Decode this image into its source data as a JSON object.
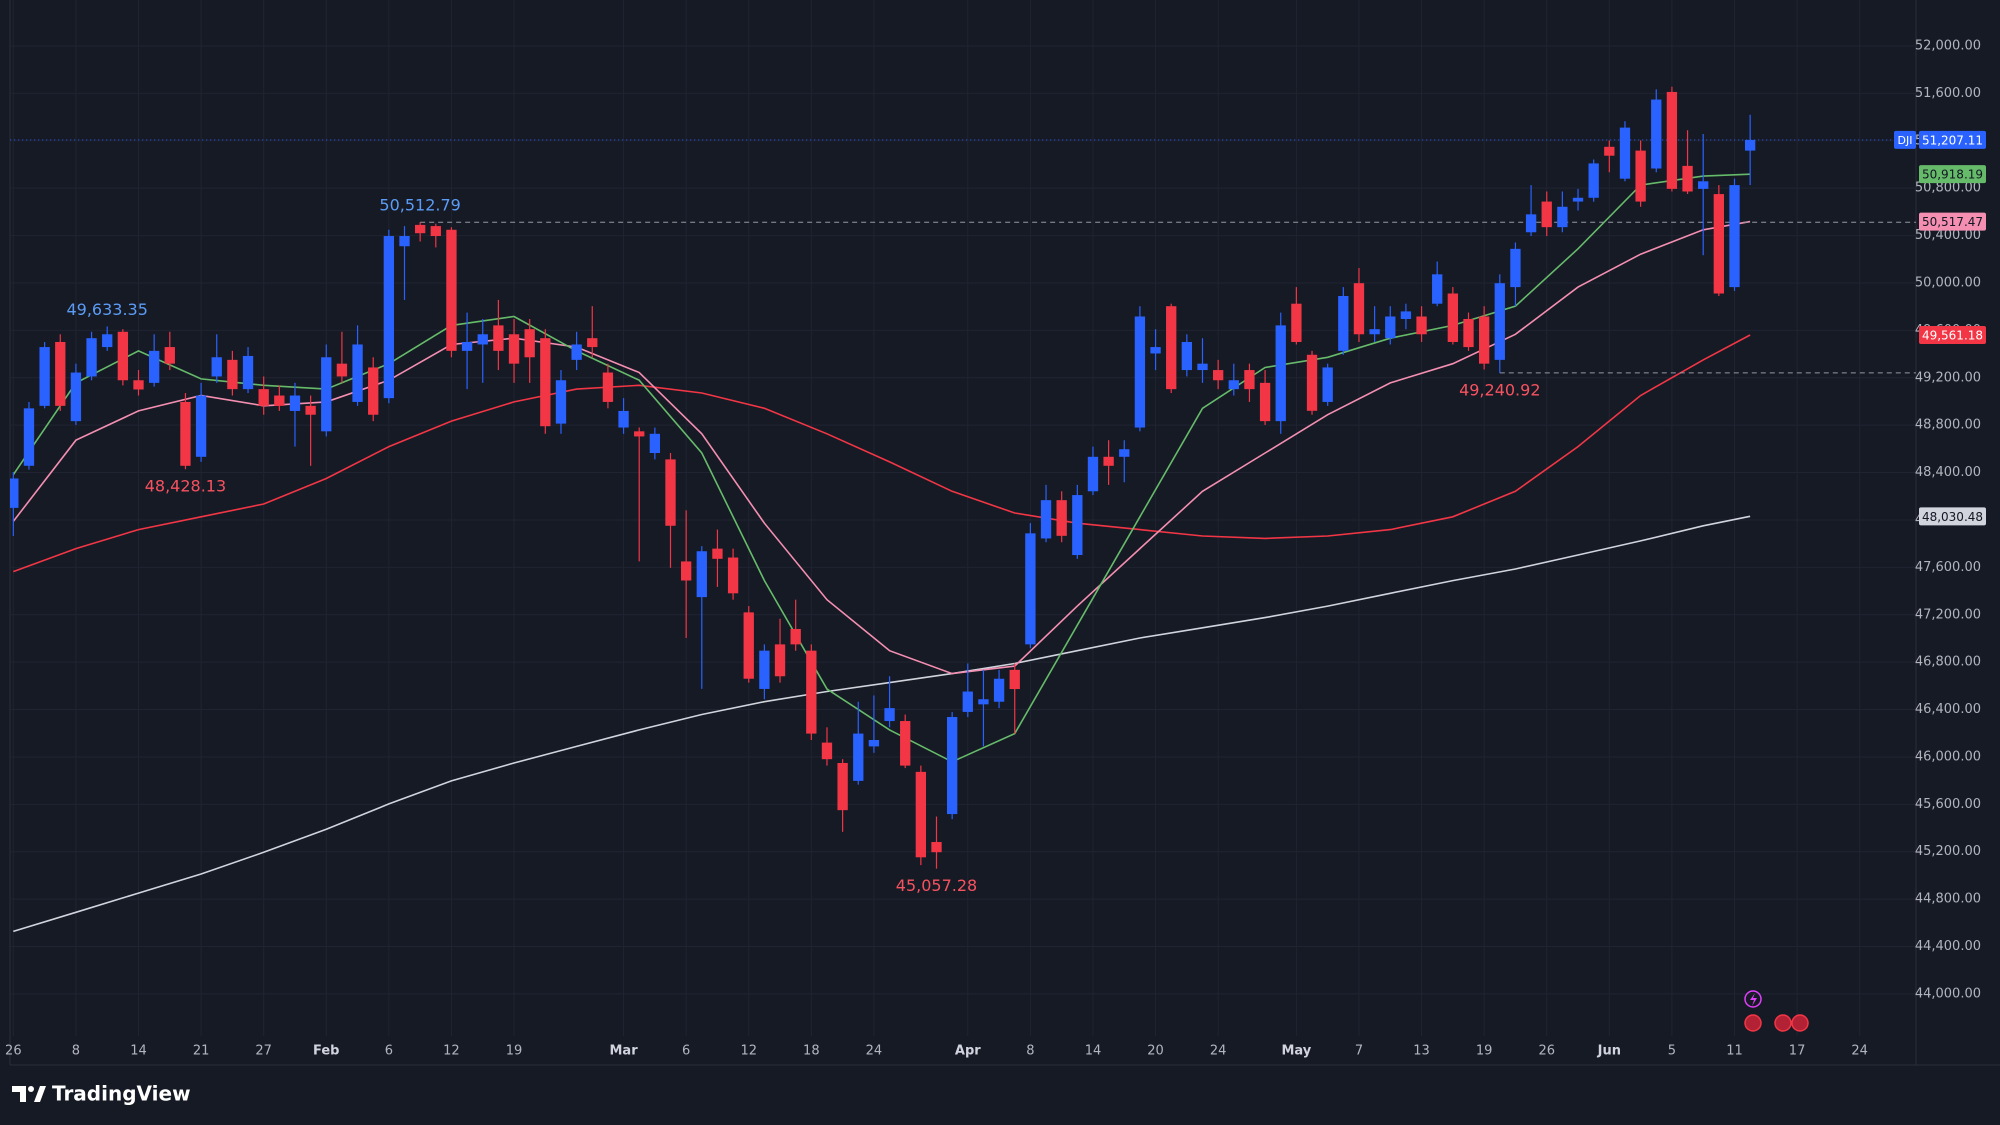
{
  "chart_data": {
    "type": "candlestick",
    "up_color": "#2962ff",
    "down_color": "#f23645",
    "grid": true,
    "xlim": [
      -0.2,
      121.6
    ],
    "ylim": [
      43645,
      52388
    ],
    "xticks": [
      {
        "value": 0,
        "label": "26"
      },
      {
        "value": 4,
        "label": "8"
      },
      {
        "value": 8,
        "label": "14"
      },
      {
        "value": 12,
        "label": "21"
      },
      {
        "value": 16,
        "label": "27"
      },
      {
        "value": 20,
        "label": "Feb"
      },
      {
        "value": 24,
        "label": "6"
      },
      {
        "value": 28,
        "label": "12"
      },
      {
        "value": 32,
        "label": "19"
      },
      {
        "value": 39,
        "label": "Mar"
      },
      {
        "value": 43,
        "label": "6"
      },
      {
        "value": 47,
        "label": "12"
      },
      {
        "value": 51,
        "label": "18"
      },
      {
        "value": 55,
        "label": "24"
      },
      {
        "value": 61,
        "label": "Apr"
      },
      {
        "value": 65,
        "label": "8"
      },
      {
        "value": 69,
        "label": "14"
      },
      {
        "value": 73,
        "label": "20"
      },
      {
        "value": 77,
        "label": "24"
      },
      {
        "value": 82,
        "label": "May"
      },
      {
        "value": 86,
        "label": "7"
      },
      {
        "value": 90,
        "label": "13"
      },
      {
        "value": 94,
        "label": "19"
      },
      {
        "value": 98,
        "label": "26"
      },
      {
        "value": 102,
        "label": "Jun"
      },
      {
        "value": 106,
        "label": "5"
      },
      {
        "value": 110,
        "label": "11"
      },
      {
        "value": 114,
        "label": "17"
      },
      {
        "value": 118,
        "label": "24"
      }
    ],
    "yticks": [
      {
        "value": 44000,
        "label": "44,000.00"
      },
      {
        "value": 44400,
        "label": "44,400.00"
      },
      {
        "value": 44800,
        "label": "44,800.00"
      },
      {
        "value": 45200,
        "label": "45,200.00"
      },
      {
        "value": 45600,
        "label": "45,600.00"
      },
      {
        "value": 46000,
        "label": "46,000.00"
      },
      {
        "value": 46400,
        "label": "46,400.00"
      },
      {
        "value": 46800,
        "label": "46,800.00"
      },
      {
        "value": 47200,
        "label": "47,200.00"
      },
      {
        "value": 47600,
        "label": "47,600.00"
      },
      {
        "value": 48000,
        "label": "48,000.00"
      },
      {
        "value": 48400,
        "label": "48,400.00"
      },
      {
        "value": 48800,
        "label": "48,800.00"
      },
      {
        "value": 49200,
        "label": "49,200.00"
      },
      {
        "value": 49600,
        "label": "49,600.00"
      },
      {
        "value": 50000,
        "label": "50,000.00"
      },
      {
        "value": 50400,
        "label": "50,400.00"
      },
      {
        "value": 50800,
        "label": "50,800.00"
      },
      {
        "value": 51200,
        "label": "51,200.00"
      },
      {
        "value": 51600,
        "label": "51,600.00"
      },
      {
        "value": 52000,
        "label": "52,000.00"
      }
    ],
    "open": [
      48102,
      48457,
      48963,
      49502,
      48834,
      49211,
      49459,
      49588,
      49179,
      49157,
      49459,
      48996,
      48533,
      49211,
      49351,
      49104,
      49104,
      49050,
      48920,
      48963,
      48748,
      49319,
      48996,
      49287,
      49028,
      50310,
      50490,
      50480,
      50449,
      49427,
      49481,
      49642,
      49567,
      49610,
      49534,
      48813,
      49351,
      49534,
      49244,
      48780,
      48748,
      48565,
      48511,
      47650,
      47349,
      47758,
      47683,
      47220,
      46574,
      46950,
      47080,
      46897,
      46121,
      45949,
      45798,
      46089,
      46303,
      46303,
      45874,
      45282,
      45518,
      46380,
      46444,
      46466,
      46735,
      46950,
      47844,
      48167,
      47704,
      48242,
      48533,
      48533,
      48780,
      49405,
      49804,
      49265,
      49265,
      49265,
      49104,
      49265,
      49157,
      48834,
      49825,
      49394,
      48996,
      49427,
      49998,
      49567,
      49534,
      49696,
      49717,
      49825,
      49911,
      49696,
      49717,
      49351,
      49965,
      50428,
      50687,
      50471,
      50687,
      50719,
      51149,
      50880,
      51117,
      50966,
      51612,
      50988,
      50794,
      50750,
      49965,
      51117
    ],
    "high": [
      48404,
      48996,
      49502,
      49567,
      49319,
      49588,
      49633.35,
      49610,
      49265,
      49567,
      49588,
      49071,
      49157,
      49567,
      49427,
      49459,
      49211,
      49136,
      49157,
      49050,
      49481,
      49588,
      49642,
      49373,
      50449,
      50480,
      50512.79,
      50500,
      50470,
      49750,
      49696,
      49857,
      49696,
      49696,
      49610,
      49265,
      49588,
      49804,
      49319,
      49028,
      48780,
      48780,
      48565,
      48081,
      47779,
      47919,
      47758,
      47273,
      46950,
      47166,
      47327,
      46950,
      46250,
      45981,
      46466,
      46519,
      46681,
      46358,
      45927,
      45497,
      46379,
      46789,
      46735,
      46735,
      46789,
      47973,
      48296,
      48242,
      48296,
      48619,
      48673,
      48673,
      49804,
      49610,
      49825,
      49567,
      49534,
      49351,
      49319,
      49319,
      49265,
      49750,
      49965,
      49427,
      49319,
      49965,
      50126,
      49804,
      49804,
      49825,
      49804,
      50181,
      49965,
      49750,
      49804,
      50073,
      50342,
      50826,
      50772,
      50772,
      50794,
      51042,
      51203,
      51365,
      51203,
      51634,
      51656,
      51289,
      51257,
      50826,
      50880,
      51419
    ],
    "low": [
      47865,
      48425,
      48942,
      48920,
      48802,
      49179,
      49427,
      49136,
      49050,
      49125,
      49265,
      48428.13,
      48490,
      49157,
      49050,
      49071,
      48888,
      48920,
      48619,
      48457,
      48705,
      49157,
      48963,
      48834,
      48985,
      49857,
      50350,
      50300,
      49373,
      49104,
      49157,
      49265,
      49157,
      49157,
      48727,
      48727,
      49265,
      49373,
      48942,
      48727,
      47650,
      48511,
      47596,
      47004,
      46574,
      47435,
      47327,
      46627,
      46487,
      46627,
      46896,
      46143,
      45927,
      45368,
      45766,
      46035,
      46250,
      45906,
      45087,
      45057.28,
      45475,
      46336,
      46089,
      46412,
      46197,
      46918,
      47812,
      47812,
      47672,
      48210,
      48296,
      48318,
      48748,
      49265,
      49071,
      49211,
      49157,
      49104,
      49050,
      48996,
      48802,
      48727,
      49481,
      48888,
      48963,
      49394,
      49502,
      49502,
      49481,
      49610,
      49502,
      49804,
      49481,
      49427,
      49270,
      49240.92,
      49804,
      50396,
      50396,
      50428,
      50611,
      50686,
      50934,
      50858,
      50643,
      50934,
      50772,
      50751,
      50234,
      49890,
      49933,
      50826
    ],
    "close": [
      48350,
      48942,
      49459,
      48963,
      49244,
      49534,
      49567,
      49179,
      49101,
      49427,
      49319,
      48457,
      49050,
      49373,
      49104,
      49384,
      48963,
      48963,
      49050,
      48888,
      49373,
      49211,
      49481,
      48888,
      50396,
      50396,
      50420,
      50396,
      49427,
      49502,
      49567,
      49427,
      49319,
      49373,
      48791,
      49179,
      49481,
      49459,
      48996,
      48920,
      48705,
      48727,
      47951,
      47489,
      47736,
      47672,
      47381,
      46660,
      46897,
      46681,
      46950,
      46197,
      45981,
      45551,
      46197,
      46143,
      46412,
      45927,
      45153,
      45196,
      46337,
      46552,
      46487,
      46660,
      46573,
      47887,
      48167,
      47866,
      48210,
      48533,
      48457,
      48597,
      49717,
      49459,
      49104,
      49502,
      49319,
      49179,
      49179,
      49104,
      48834,
      49642,
      49502,
      48921,
      49287,
      49890,
      49567,
      49610,
      49717,
      49760,
      49567,
      50073,
      49502,
      49459,
      49319,
      49998,
      50288,
      50579,
      50471,
      50643,
      50719,
      51009,
      51074,
      51311,
      50687,
      51548,
      50794,
      50772,
      50858,
      49911,
      50826,
      51207.11
    ],
    "overlays": {
      "x": [
        0,
        4,
        8,
        12,
        16,
        20,
        24,
        28,
        32,
        36,
        40,
        44,
        48,
        52,
        56,
        60,
        64,
        68,
        72,
        76,
        80,
        84,
        88,
        92,
        96,
        100,
        104,
        108,
        111
      ],
      "series": [
        {
          "color": "#d1d4dc",
          "tag_text": "#131722",
          "values": [
            44528,
            44689,
            44851,
            45012,
            45195,
            45389,
            45604,
            45798,
            45949,
            46089,
            46228,
            46358,
            46466,
            46552,
            46627,
            46703,
            46789,
            46897,
            47004,
            47090,
            47176,
            47273,
            47381,
            47488,
            47586,
            47704,
            47823,
            47951,
            48030.48
          ],
          "tag": {
            "value": 48030.48,
            "label": "48,030.48"
          }
        },
        {
          "color": "#f23645",
          "tag_text": "#ffffff",
          "values": [
            47564,
            47758,
            47919,
            48027,
            48135,
            48350,
            48619,
            48834,
            48996,
            49104,
            49136,
            49071,
            48942,
            48727,
            48490,
            48242,
            48059,
            47973,
            47919,
            47865,
            47844,
            47865,
            47919,
            48027,
            48242,
            48619,
            49050,
            49351,
            49561.18
          ],
          "tag": {
            "value": 49561.18,
            "label": "49,561.18"
          }
        },
        {
          "color": "#f48fb1",
          "tag_text": "#131722",
          "values": [
            47988,
            48673,
            48920,
            49050,
            48963,
            48996,
            49179,
            49481,
            49534,
            49459,
            49244,
            48727,
            47973,
            47327,
            46897,
            46703,
            46767,
            47273,
            47758,
            48242,
            48565,
            48888,
            49157,
            49319,
            49567,
            49965,
            50243,
            50449,
            50517.47
          ],
          "tag": {
            "value": 50517.47,
            "label": "50,517.47"
          }
        },
        {
          "color": "#66bb6a",
          "tag_text": "#131722",
          "values": [
            48382,
            49157,
            49427,
            49190,
            49136,
            49104,
            49319,
            49642,
            49717,
            49427,
            49179,
            48565,
            47488,
            46573,
            46228,
            45959,
            46197,
            47112,
            48027,
            48942,
            49287,
            49373,
            49534,
            49642,
            49804,
            50288,
            50826,
            50902,
            50918.19
          ],
          "tag": {
            "value": 50918.19,
            "label": "50,918.19"
          }
        }
      ]
    },
    "last_price": {
      "symbol": "DJI",
      "value": 51207.11,
      "label": "51,207.11",
      "color": "#2962ff"
    },
    "annotations": [
      {
        "index": 6,
        "value": 49633.35,
        "label": "49,633.35",
        "color": "#5b9cf6",
        "side": "above",
        "dashed": false
      },
      {
        "index": 11,
        "value": 48428.13,
        "label": "48,428.13",
        "color": "#f7525f",
        "side": "below",
        "dashed": false
      },
      {
        "index": 26,
        "value": 50512.79,
        "label": "50,512.79",
        "color": "#5b9cf6",
        "side": "above",
        "dashed": true
      },
      {
        "index": 59,
        "value": 45057.28,
        "label": "45,057.28",
        "color": "#f7525f",
        "side": "below",
        "dashed": false
      },
      {
        "index": 95,
        "value": 49240.92,
        "label": "49,240.92",
        "color": "#f7525f",
        "side": "below",
        "dashed": true
      }
    ],
    "branding": "TradingView"
  }
}
